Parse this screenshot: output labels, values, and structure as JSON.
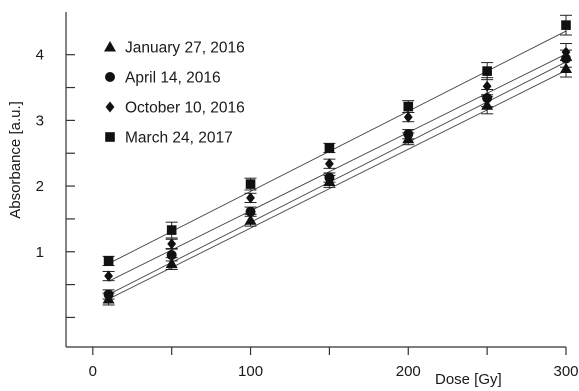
{
  "chart_data": {
    "type": "scatter",
    "title": "",
    "xlabel": "Dose [Gy]",
    "ylabel": "Absorbance [a.u.]",
    "xlim": [
      -17,
      300
    ],
    "ylim": [
      -0.45,
      4.65
    ],
    "x_ticks": [
      0,
      100,
      200,
      300
    ],
    "x_minor_ticks": [
      50,
      150,
      250
    ],
    "y_ticks": [
      1,
      2,
      3,
      4
    ],
    "y_minor_ticks": [
      0,
      0.5,
      1.5,
      2.5,
      3.5
    ],
    "grid": false,
    "legend_position": "top-left",
    "fit_lines": true,
    "x": [
      10,
      50,
      100,
      150,
      200,
      250,
      300
    ],
    "series": [
      {
        "name": "January 27, 2016",
        "marker": "triangle",
        "values": [
          0.28,
          0.82,
          1.48,
          2.07,
          2.72,
          3.23,
          3.79
        ],
        "error": [
          0.09,
          0.09,
          0.09,
          0.09,
          0.09,
          0.13,
          0.13
        ],
        "fit": [
          0.28,
          3.76
        ]
      },
      {
        "name": "April 14, 2016",
        "marker": "circle",
        "values": [
          0.35,
          0.95,
          1.61,
          2.13,
          2.79,
          3.34,
          3.94
        ],
        "error": [
          0.07,
          0.09,
          0.07,
          0.07,
          0.07,
          0.13,
          0.13
        ],
        "fit": [
          0.35,
          3.89
        ]
      },
      {
        "name": "October 10, 2016",
        "marker": "diamond",
        "values": [
          0.63,
          1.12,
          1.82,
          2.34,
          3.05,
          3.52,
          4.04
        ],
        "error": [
          0.07,
          0.07,
          0.07,
          0.07,
          0.07,
          0.13,
          0.13
        ],
        "fit": [
          0.55,
          4.01
        ]
      },
      {
        "name": "March 24, 2017",
        "marker": "square",
        "values": [
          0.86,
          1.33,
          2.03,
          2.58,
          3.21,
          3.75,
          4.45
        ],
        "error": [
          0.07,
          0.12,
          0.09,
          0.07,
          0.09,
          0.13,
          0.15
        ],
        "fit": [
          0.82,
          4.36
        ]
      }
    ]
  }
}
